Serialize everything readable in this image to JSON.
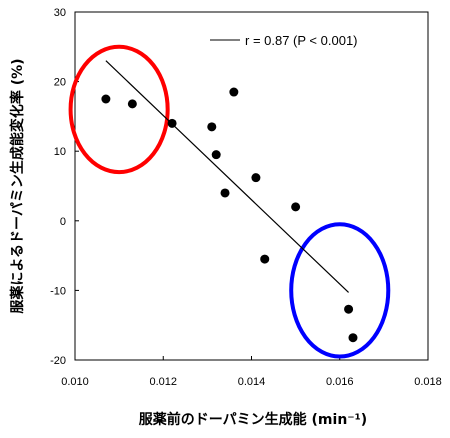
{
  "chart_data": {
    "type": "scatter",
    "xlabel": "服薬前のドーパミン生成能 (min⁻¹)",
    "ylabel": "服薬によるドーパミン生成能変化率 (%)",
    "xlim": [
      0.01,
      0.018
    ],
    "ylim": [
      -20,
      30
    ],
    "x_ticks": [
      "0.010",
      "0.012",
      "0.014",
      "0.016",
      "0.018"
    ],
    "y_ticks": [
      "30",
      "20",
      "10",
      "0",
      "-10",
      "-20"
    ],
    "x_tick_values": [
      0.01,
      0.012,
      0.014,
      0.016,
      0.018
    ],
    "y_tick_values": [
      30,
      20,
      10,
      0,
      -10,
      -20
    ],
    "points": [
      {
        "x": 0.0107,
        "y": 17.5
      },
      {
        "x": 0.0113,
        "y": 16.8
      },
      {
        "x": 0.0122,
        "y": 14.0
      },
      {
        "x": 0.0131,
        "y": 13.5
      },
      {
        "x": 0.0132,
        "y": 9.5
      },
      {
        "x": 0.0134,
        "y": 4.0
      },
      {
        "x": 0.0136,
        "y": 18.5
      },
      {
        "x": 0.0141,
        "y": 6.2
      },
      {
        "x": 0.0143,
        "y": -5.5
      },
      {
        "x": 0.015,
        "y": 2.0
      },
      {
        "x": 0.0162,
        "y": -12.7
      },
      {
        "x": 0.0163,
        "y": -16.8
      }
    ],
    "regression": {
      "x": [
        0.0107,
        0.0162
      ],
      "y": [
        23.0,
        -10.3
      ]
    },
    "legend": "r = 0.87 (P < 0.001)",
    "legend_position": "top-right",
    "highlights": [
      {
        "color": "#ff0000",
        "cx": 0.011,
        "cy": 16.0,
        "rx": 0.0011,
        "ry": 9.0
      },
      {
        "color": "#0000ff",
        "cx": 0.016,
        "cy": -10.0,
        "rx": 0.0011,
        "ry": 9.5
      }
    ],
    "grid": false
  }
}
